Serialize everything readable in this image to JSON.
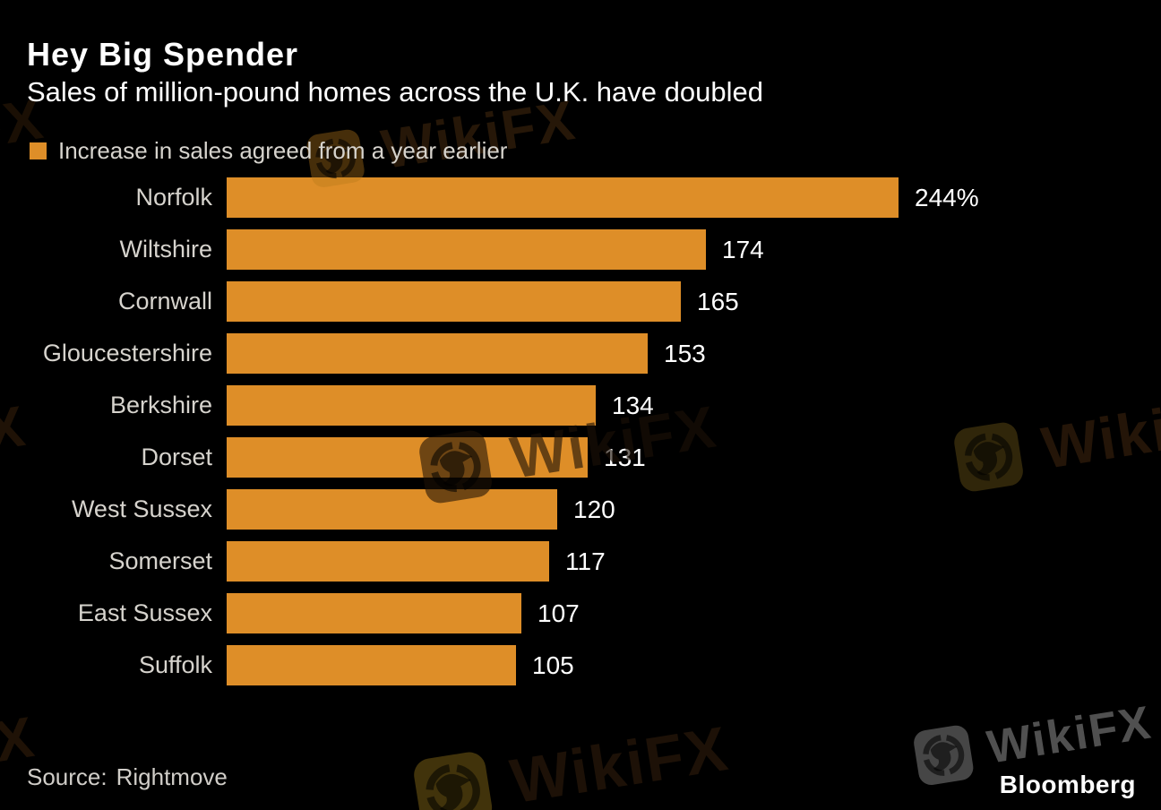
{
  "header": {
    "title": "Hey Big Spender",
    "subtitle": "Sales of million-pound homes across the U.K. have doubled"
  },
  "legend": {
    "label": "Increase in sales agreed from a year earlier",
    "color": "#DE8E28"
  },
  "chart_data": {
    "type": "bar",
    "orientation": "horizontal",
    "title": "Hey Big Spender",
    "subtitle": "Sales of million-pound homes across the U.K. have doubled",
    "series_name": "Increase in sales agreed from a year earlier",
    "categories": [
      "Norfolk",
      "Wiltshire",
      "Cornwall",
      "Gloucestershire",
      "Berkshire",
      "Dorset",
      "West Sussex",
      "Somerset",
      "East Sussex",
      "Suffolk"
    ],
    "values": [
      244,
      174,
      165,
      153,
      134,
      131,
      120,
      117,
      107,
      105
    ],
    "value_labels": [
      "244%",
      "174",
      "165",
      "153",
      "134",
      "131",
      "120",
      "117",
      "107",
      "105"
    ],
    "unit": "%",
    "xlim": [
      0,
      244
    ],
    "bar_color": "#DE8E28",
    "background": "#000000",
    "grid": false,
    "legend_position": "top-left",
    "value_labels_position": "end-of-bar"
  },
  "source": {
    "label": "Source:",
    "value": "Rightmove"
  },
  "branding": {
    "logo": "Bloomberg"
  },
  "watermark": {
    "text": "WikiFX"
  }
}
